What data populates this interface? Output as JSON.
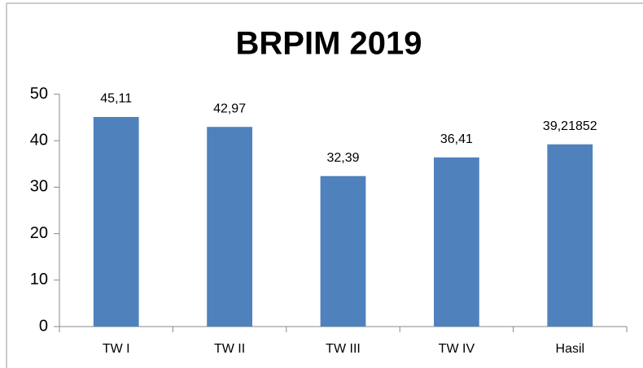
{
  "chart_data": {
    "type": "bar",
    "title": "BRPIM 2019",
    "categories": [
      "TW I",
      "TW II",
      "TW III",
      "TW IV",
      "Hasil"
    ],
    "values": [
      45.11,
      42.97,
      32.39,
      36.41,
      39.21852
    ],
    "value_labels": [
      "45,11",
      "42,97",
      "32,39",
      "36,41",
      "39,21852"
    ],
    "color": "#4f81bd",
    "ylim": [
      0,
      50
    ],
    "yticks": [
      0,
      10,
      20,
      30,
      40,
      50
    ],
    "grid": false
  }
}
